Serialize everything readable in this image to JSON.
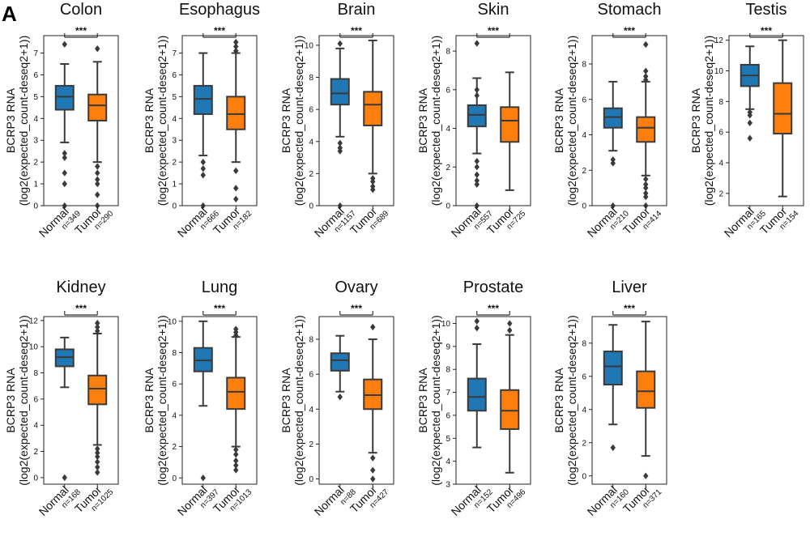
{
  "figure": {
    "panel_label": "A",
    "ylabel_line1": "BCRP3 RNA",
    "ylabel_line2": "(log2(expected_count-deseq2+1))",
    "categories": [
      "Normal",
      "Tumor"
    ],
    "significance": "***",
    "colors": {
      "normal": "#1f77b4",
      "tumor": "#ff7f0e",
      "line": "#3a3a3a"
    }
  },
  "chart_data": [
    {
      "type": "box",
      "title": "Colon",
      "ylim": [
        0,
        7.8
      ],
      "yticks": [
        0,
        1,
        2,
        3,
        4,
        5,
        6,
        7
      ],
      "series": [
        {
          "name": "Normal",
          "n": "n=349",
          "min": 2.9,
          "q1": 4.4,
          "median": 5.0,
          "q3": 5.5,
          "max": 6.5,
          "outliers": [
            7.4,
            2.4,
            2.2,
            1.5,
            1.0,
            0
          ]
        },
        {
          "name": "Tumor",
          "n": "n=290",
          "min": 2.0,
          "q1": 3.9,
          "median": 4.6,
          "q3": 5.1,
          "max": 6.6,
          "outliers": [
            7.2,
            1.8,
            1.5,
            1.2,
            1.0,
            0.5,
            0
          ]
        }
      ]
    },
    {
      "type": "box",
      "title": "Esophagus",
      "ylim": [
        0,
        7.8
      ],
      "yticks": [
        0,
        1,
        2,
        3,
        4,
        5,
        6,
        7
      ],
      "series": [
        {
          "name": "Normal",
          "n": "n=666",
          "min": 2.3,
          "q1": 4.2,
          "median": 4.9,
          "q3": 5.5,
          "max": 7.0,
          "outliers": [
            2.0,
            1.7,
            1.4,
            0
          ]
        },
        {
          "name": "Tumor",
          "n": "n=182",
          "min": 2.0,
          "q1": 3.5,
          "median": 4.2,
          "q3": 5.0,
          "max": 7.0,
          "outliers": [
            7.5,
            7.3,
            7.1,
            1.6,
            0.8,
            0.3
          ]
        }
      ]
    },
    {
      "type": "box",
      "title": "Brain",
      "ylim": [
        0,
        10.6
      ],
      "yticks": [
        0,
        2,
        4,
        6,
        8,
        10
      ],
      "series": [
        {
          "name": "Normal",
          "n": "n=1157",
          "min": 4.3,
          "q1": 6.3,
          "median": 7.0,
          "q3": 7.9,
          "max": 9.8,
          "outliers": [
            10.1,
            3.9,
            3.6,
            3.4,
            0
          ]
        },
        {
          "name": "Tumor",
          "n": "n=689",
          "min": 2.0,
          "q1": 5.0,
          "median": 6.3,
          "q3": 7.1,
          "max": 10.3,
          "outliers": [
            1.7,
            1.5,
            1.2,
            1.0
          ]
        }
      ]
    },
    {
      "type": "box",
      "title": "Skin",
      "ylim": [
        0,
        8.8
      ],
      "yticks": [
        0,
        2,
        4,
        6,
        8
      ],
      "series": [
        {
          "name": "Normal",
          "n": "n=557",
          "min": 2.7,
          "q1": 4.1,
          "median": 4.7,
          "q3": 5.2,
          "max": 6.6,
          "outliers": [
            8.4,
            6.0,
            5.7,
            2.3,
            2.0,
            1.6,
            1.3,
            1.1,
            0
          ]
        },
        {
          "name": "Tumor",
          "n": "n=725",
          "min": 0.8,
          "q1": 3.3,
          "median": 4.4,
          "q3": 5.1,
          "max": 6.9,
          "outliers": []
        }
      ]
    },
    {
      "type": "box",
      "title": "Stomach",
      "ylim": [
        0,
        9.6
      ],
      "yticks": [
        0,
        2,
        4,
        6,
        8
      ],
      "series": [
        {
          "name": "Normal",
          "n": "n=210",
          "min": 3.1,
          "q1": 4.4,
          "median": 5.0,
          "q3": 5.5,
          "max": 7.0,
          "outliers": [
            2.6,
            2.4,
            0
          ]
        },
        {
          "name": "Tumor",
          "n": "n=414",
          "min": 1.7,
          "q1": 3.6,
          "median": 4.4,
          "q3": 5.0,
          "max": 7.0,
          "outliers": [
            9.1,
            7.6,
            7.3,
            7.1,
            1.5,
            1.2,
            1.0,
            0.7,
            0.5,
            0
          ]
        }
      ]
    },
    {
      "type": "box",
      "title": "Testis",
      "ylim": [
        1.2,
        12.3
      ],
      "yticks": [
        2,
        4,
        6,
        8,
        10,
        12
      ],
      "series": [
        {
          "name": "Normal",
          "n": "n=165",
          "min": 7.5,
          "q1": 9.0,
          "median": 9.7,
          "q3": 10.4,
          "max": 11.6,
          "outliers": [
            7.3,
            7.1,
            6.6,
            5.6
          ]
        },
        {
          "name": "Tumor",
          "n": "n=154",
          "min": 1.8,
          "q1": 5.9,
          "median": 7.2,
          "q3": 9.2,
          "max": 12.0,
          "outliers": []
        }
      ]
    },
    {
      "type": "box",
      "title": "Kidney",
      "ylim": [
        -0.5,
        12.3
      ],
      "yticks": [
        0,
        2,
        4,
        6,
        8,
        10,
        12
      ],
      "series": [
        {
          "name": "Normal",
          "n": "n=168",
          "min": 6.9,
          "q1": 8.5,
          "median": 9.2,
          "q3": 9.8,
          "max": 10.7,
          "outliers": [
            0
          ]
        },
        {
          "name": "Tumor",
          "n": "n=1025",
          "min": 2.5,
          "q1": 5.6,
          "median": 6.8,
          "q3": 7.8,
          "max": 11.0,
          "outliers": [
            11.8,
            11.5,
            11.2,
            2.2,
            1.9,
            1.6,
            1.2,
            0.8,
            0.4
          ]
        }
      ]
    },
    {
      "type": "box",
      "title": "Lung",
      "ylim": [
        -0.4,
        10.3
      ],
      "yticks": [
        0,
        2,
        4,
        6,
        8,
        10
      ],
      "series": [
        {
          "name": "Normal",
          "n": "n=397",
          "min": 4.6,
          "q1": 6.8,
          "median": 7.5,
          "q3": 8.3,
          "max": 10.0,
          "outliers": [
            0
          ]
        },
        {
          "name": "Tumor",
          "n": "n=1013",
          "min": 2.0,
          "q1": 4.4,
          "median": 5.5,
          "q3": 6.4,
          "max": 9.0,
          "outliers": [
            9.5,
            9.3,
            9.1,
            1.8,
            1.5,
            1.1,
            0.8,
            0.5
          ]
        }
      ]
    },
    {
      "type": "box",
      "title": "Ovary",
      "ylim": [
        -0.3,
        9.3
      ],
      "yticks": [
        0,
        2,
        4,
        6,
        8
      ],
      "series": [
        {
          "name": "Normal",
          "n": "n=88",
          "min": 5.0,
          "q1": 6.2,
          "median": 6.8,
          "q3": 7.2,
          "max": 8.2,
          "outliers": [
            4.7
          ]
        },
        {
          "name": "Tumor",
          "n": "n=427",
          "min": 1.5,
          "q1": 4.0,
          "median": 4.8,
          "q3": 5.7,
          "max": 8.0,
          "outliers": [
            8.7,
            1.2,
            0.5,
            0
          ]
        }
      ]
    },
    {
      "type": "box",
      "title": "Prostate",
      "ylim": [
        3.0,
        10.3
      ],
      "yticks": [
        3,
        4,
        5,
        6,
        7,
        8,
        9,
        10
      ],
      "series": [
        {
          "name": "Normal",
          "n": "n=152",
          "min": 4.6,
          "q1": 6.2,
          "median": 6.8,
          "q3": 7.6,
          "max": 9.1,
          "outliers": [
            10.1,
            9.8
          ]
        },
        {
          "name": "Tumor",
          "n": "n=496",
          "min": 3.5,
          "q1": 5.4,
          "median": 6.2,
          "q3": 7.1,
          "max": 9.5,
          "outliers": [
            10.0,
            9.7
          ]
        }
      ]
    },
    {
      "type": "box",
      "title": "Liver",
      "ylim": [
        -0.5,
        9.6
      ],
      "yticks": [
        0,
        2,
        4,
        6,
        8
      ],
      "series": [
        {
          "name": "Normal",
          "n": "n=160",
          "min": 3.1,
          "q1": 5.5,
          "median": 6.6,
          "q3": 7.5,
          "max": 9.1,
          "outliers": [
            1.7
          ]
        },
        {
          "name": "Tumor",
          "n": "n=371",
          "min": 1.2,
          "q1": 4.1,
          "median": 5.1,
          "q3": 6.3,
          "max": 9.3,
          "outliers": [
            0
          ]
        }
      ]
    }
  ]
}
